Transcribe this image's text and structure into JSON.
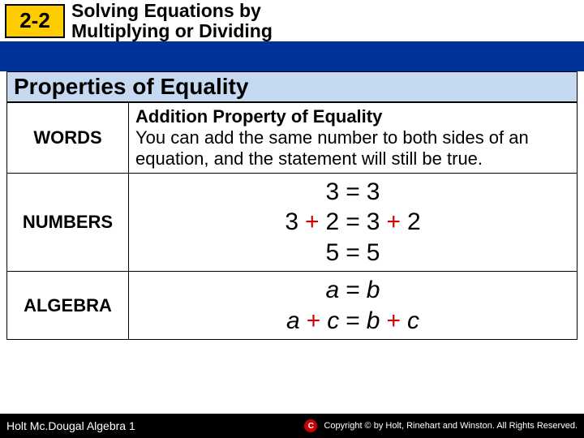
{
  "header": {
    "section": "2-2",
    "title_line1": "Solving Equations by",
    "title_line2": "Multiplying or Dividing"
  },
  "table": {
    "title": "Properties of Equality",
    "rows": {
      "words": {
        "label": "WORDS",
        "heading": "Addition Property of Equality",
        "body": "You can add the same number to both sides of an equation, and the statement will still be true."
      },
      "numbers": {
        "label": "NUMBERS",
        "line1": {
          "lhs": "3",
          "eq": "=",
          "rhs": "3"
        },
        "line2": {
          "l1": "3",
          "plus1": "+",
          "l2": "2",
          "eq": "=",
          "r1": "3",
          "plus2": "+",
          "r2": "2"
        },
        "line3": {
          "lhs": "5",
          "eq": "=",
          "rhs": "5"
        }
      },
      "algebra": {
        "label": "ALGEBRA",
        "line1": {
          "lhs": "a",
          "eq": "=",
          "rhs": "b"
        },
        "line2": {
          "l1": "a",
          "plus1": "+",
          "l2": "c",
          "eq": "=",
          "r1": "b",
          "plus2": "+",
          "r2": "c"
        }
      }
    }
  },
  "footer": {
    "left": "Holt Mc.Dougal Algebra 1",
    "copyright_symbol": "C",
    "copyright_text": "Copyright © by Holt, Rinehart and Winston. All Rights Reserved."
  },
  "colors": {
    "blue_bar": "#003399",
    "yellow_box": "#ffcc00",
    "title_bg": "#c5d9f1",
    "plus_color": "#cc0000",
    "footer_bg": "#000000",
    "text": "#000000"
  }
}
